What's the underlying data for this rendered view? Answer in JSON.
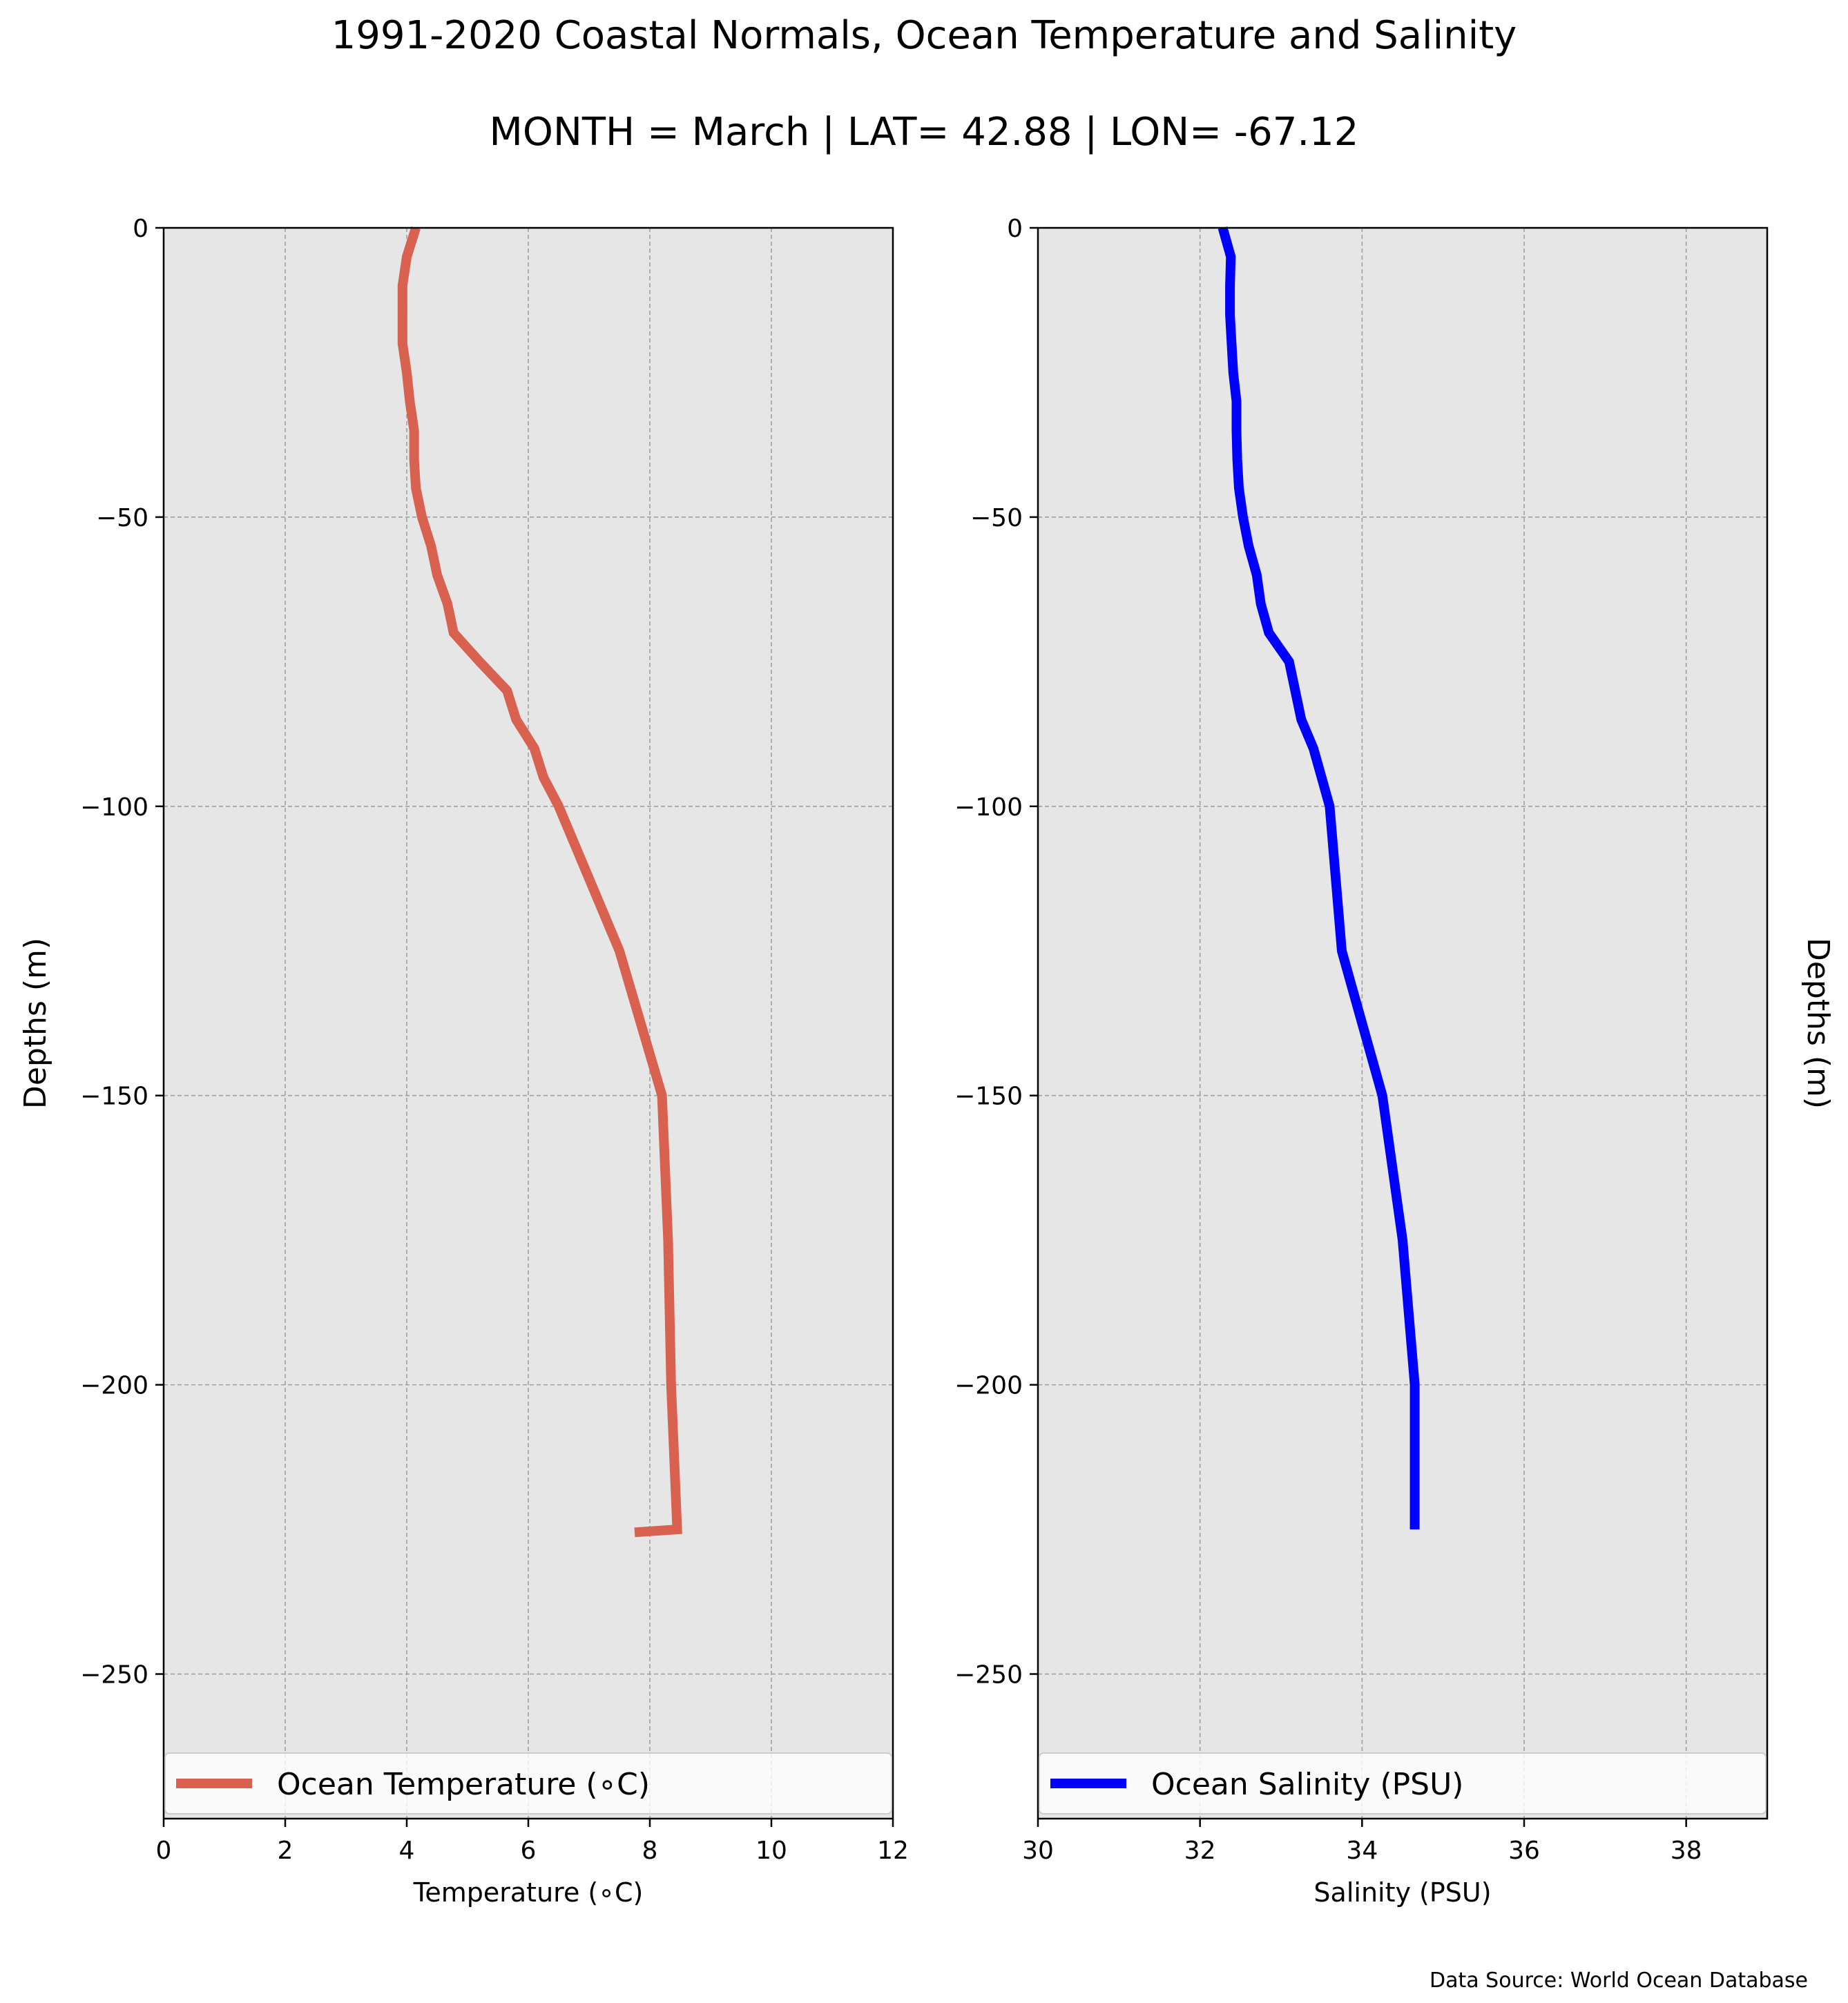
{
  "title": "1991-2020 Coastal Normals, Ocean Temperature and Salinity",
  "subtitle": "MONTH = March | LAT= 42.88 | LON= -67.12",
  "source_note": "Data Source: World Ocean Database",
  "colors": {
    "temperature": "#d96150",
    "salinity": "#0000ff",
    "axes_background": "#e6e6e6",
    "grid": "#a0a0a0"
  },
  "chart_data": [
    {
      "type": "line",
      "xlabel": "Temperature (∘C)",
      "ylabel": "Depths (m)",
      "ylabel_side": "left",
      "xlim": [
        0,
        12
      ],
      "ylim": [
        -275,
        0
      ],
      "xticks": [
        0,
        2,
        4,
        6,
        8,
        10,
        12
      ],
      "xtick_labels": [
        "0",
        "2",
        "4",
        "6",
        "8",
        "10",
        "12"
      ],
      "yticks": [
        0,
        -50,
        -100,
        -150,
        -200,
        -250
      ],
      "ytick_labels": [
        "0",
        "−50",
        "−100",
        "−150",
        "−200",
        "−250"
      ],
      "grid": true,
      "legend_placement": "lower center",
      "series": [
        {
          "name": "Ocean Temperature (∘C)",
          "color": "#d96150",
          "x": [
            4.15,
            4.0,
            3.93,
            3.93,
            3.93,
            4.0,
            4.05,
            4.12,
            4.12,
            4.15,
            4.25,
            4.4,
            4.5,
            4.67,
            4.77,
            5.2,
            5.65,
            5.8,
            6.1,
            6.25,
            6.5,
            7.5,
            8.2,
            8.3,
            8.35,
            8.45,
            7.75
          ],
          "y": [
            0,
            -5,
            -10,
            -15,
            -20,
            -25,
            -30,
            -35,
            -40,
            -45,
            -50,
            -55,
            -60,
            -65,
            -70,
            -75,
            -80,
            -85,
            -90,
            -95,
            -100,
            -125,
            -150,
            -175,
            -200,
            -225,
            -225.5
          ]
        }
      ]
    },
    {
      "type": "line",
      "xlabel": "Salinity (PSU)",
      "ylabel": "Depths (m)",
      "ylabel_side": "right",
      "xlim": [
        30,
        39
      ],
      "ylim": [
        -275,
        0
      ],
      "xticks": [
        30,
        32,
        34,
        36,
        38
      ],
      "xtick_labels": [
        "30",
        "32",
        "34",
        "36",
        "38"
      ],
      "yticks": [
        0,
        -50,
        -100,
        -150,
        -200,
        -250
      ],
      "ytick_labels": [
        "0",
        "−50",
        "−100",
        "−150",
        "−200",
        "−250"
      ],
      "grid": true,
      "legend_placement": "lower center",
      "series": [
        {
          "name": "Ocean Salinity (PSU)",
          "color": "#0000ff",
          "x": [
            32.28,
            32.38,
            32.37,
            32.37,
            32.39,
            32.41,
            32.45,
            32.45,
            32.46,
            32.48,
            32.53,
            32.6,
            32.7,
            32.75,
            32.85,
            33.1,
            33.25,
            33.4,
            33.5,
            33.6,
            33.75,
            34.25,
            34.5,
            34.65,
            34.65
          ],
          "y": [
            0,
            -5,
            -10,
            -15,
            -20,
            -25,
            -30,
            -35,
            -40,
            -45,
            -50,
            -55,
            -60,
            -65,
            -70,
            -75,
            -85,
            -90,
            -95,
            -100,
            -125,
            -150,
            -175,
            -200,
            -225
          ]
        }
      ]
    }
  ]
}
